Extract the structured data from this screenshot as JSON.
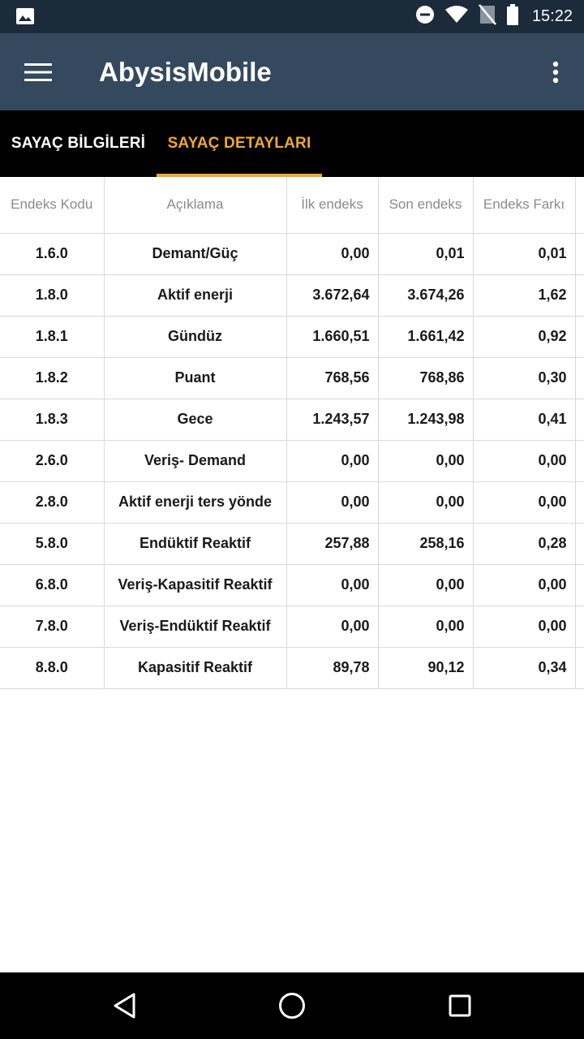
{
  "status_bar": {
    "time": "15:22",
    "icons": [
      "image-icon",
      "dnd-icon",
      "wifi-icon",
      "no-sim-icon",
      "battery-icon"
    ]
  },
  "app_bar": {
    "title": "AbysisMobile",
    "icons": [
      "menu-icon",
      "more-vert-icon"
    ]
  },
  "tabs": [
    {
      "label": "SAYAÇ BİLGİLERİ",
      "selected": false
    },
    {
      "label": "SAYAÇ DETAYLARI",
      "selected": true
    }
  ],
  "colors": {
    "status_bar": "#1c2b3a",
    "app_bar": "#34495e",
    "tab_bar": "#000000",
    "accent": "#f0a830"
  },
  "table": {
    "headers": [
      "Endeks Kodu",
      "Açıklama",
      "İlk endeks",
      "Son endeks",
      "Endeks Farkı"
    ],
    "rows": [
      [
        "1.6.0",
        "Demant/Güç",
        "0,00",
        "0,01",
        "0,01"
      ],
      [
        "1.8.0",
        "Aktif enerji",
        "3.672,64",
        "3.674,26",
        "1,62"
      ],
      [
        "1.8.1",
        "Gündüz",
        "1.660,51",
        "1.661,42",
        "0,92"
      ],
      [
        "1.8.2",
        "Puant",
        "768,56",
        "768,86",
        "0,30"
      ],
      [
        "1.8.3",
        "Gece",
        "1.243,57",
        "1.243,98",
        "0,41"
      ],
      [
        "2.6.0",
        "Veriş- Demand",
        "0,00",
        "0,00",
        "0,00"
      ],
      [
        "2.8.0",
        "Aktif enerji ters yönde",
        "0,00",
        "0,00",
        "0,00"
      ],
      [
        "5.8.0",
        "Endüktif Reaktif",
        "257,88",
        "258,16",
        "0,28"
      ],
      [
        "6.8.0",
        "Veriş-Kapasitif Reaktif",
        "0,00",
        "0,00",
        "0,00"
      ],
      [
        "7.8.0",
        "Veriş-Endüktif Reaktif",
        "0,00",
        "0,00",
        "0,00"
      ],
      [
        "8.8.0",
        "Kapasitif Reaktif",
        "89,78",
        "90,12",
        "0,34"
      ]
    ]
  },
  "nav_bar": {
    "icons": [
      "back-icon",
      "home-icon",
      "recents-icon"
    ]
  }
}
